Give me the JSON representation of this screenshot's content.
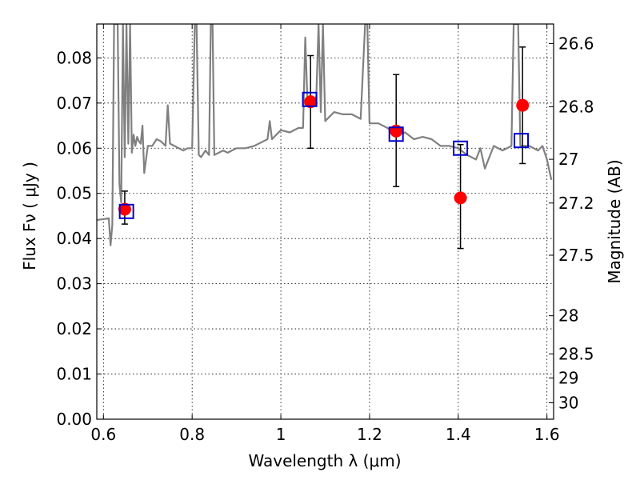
{
  "chart_data": {
    "type": "scatter",
    "xlabel": "Wavelength  λ (μm)",
    "ylabel": "Flux  Fν  ( μJy )",
    "y2label": "Magnitude (AB)",
    "xlim": [
      0.585,
      1.615
    ],
    "ylim": [
      0.0,
      0.0875
    ],
    "grid": true,
    "x_ticks": [
      0.6,
      0.8,
      1.0,
      1.2,
      1.4,
      1.6
    ],
    "x_tick_labels": [
      "0.6",
      "0.8",
      "1",
      "1.2",
      "1.4",
      "1.6"
    ],
    "y_ticks": [
      0.0,
      0.01,
      0.02,
      0.03,
      0.04,
      0.05,
      0.06,
      0.07,
      0.08
    ],
    "y_tick_labels": [
      "0.00",
      "0.01",
      "0.02",
      "0.03",
      "0.04",
      "0.05",
      "0.06",
      "0.07",
      "0.08"
    ],
    "mag_ticks": [
      26.6,
      26.8,
      27.0,
      27.2,
      27.5,
      28.0,
      28.5,
      29.0,
      30.0
    ],
    "mag_tick_labels": [
      "26.6",
      "26.8",
      "27",
      "27.2",
      "27.5",
      "28",
      "28.5",
      "29",
      "30"
    ],
    "model_spectrum": {
      "color": "#808080",
      "x": [
        0.585,
        0.6,
        0.612,
        0.616,
        0.62,
        0.624,
        0.628,
        0.632,
        0.636,
        0.64,
        0.644,
        0.648,
        0.652,
        0.656,
        0.66,
        0.664,
        0.668,
        0.672,
        0.676,
        0.68,
        0.684,
        0.688,
        0.692,
        0.7,
        0.71,
        0.72,
        0.73,
        0.74,
        0.745,
        0.75,
        0.76,
        0.77,
        0.78,
        0.79,
        0.8,
        0.806,
        0.81,
        0.815,
        0.82,
        0.83,
        0.838,
        0.842,
        0.846,
        0.85,
        0.86,
        0.87,
        0.88,
        0.9,
        0.92,
        0.94,
        0.96,
        0.97,
        0.975,
        0.98,
        0.985,
        0.99,
        1.0,
        1.02,
        1.04,
        1.05,
        1.055,
        1.06,
        1.075,
        1.08,
        1.085,
        1.09,
        1.095,
        1.1,
        1.11,
        1.12,
        1.14,
        1.16,
        1.18,
        1.19,
        1.195,
        1.2,
        1.22,
        1.24,
        1.26,
        1.28,
        1.3,
        1.32,
        1.34,
        1.36,
        1.38,
        1.4,
        1.42,
        1.44,
        1.45,
        1.46,
        1.48,
        1.5,
        1.52,
        1.525,
        1.53,
        1.535,
        1.54,
        1.56,
        1.58,
        1.59,
        1.6,
        1.61
      ],
      "y": [
        0.0441,
        0.0443,
        0.0445,
        0.0385,
        0.043,
        0.0875,
        0.0875,
        0.0875,
        0.052,
        0.048,
        0.0875,
        0.058,
        0.0875,
        0.061,
        0.0875,
        0.059,
        0.063,
        0.0605,
        0.0625,
        0.0615,
        0.061,
        0.065,
        0.0545,
        0.0605,
        0.0605,
        0.062,
        0.0615,
        0.0605,
        0.0695,
        0.061,
        0.0605,
        0.06,
        0.0595,
        0.06,
        0.06,
        0.0875,
        0.0875,
        0.0585,
        0.058,
        0.0595,
        0.0585,
        0.0875,
        0.0875,
        0.0585,
        0.059,
        0.0595,
        0.059,
        0.06,
        0.06,
        0.0605,
        0.0615,
        0.062,
        0.066,
        0.062,
        0.0625,
        0.063,
        0.064,
        0.0635,
        0.0645,
        0.0645,
        0.0845,
        0.0705,
        0.0705,
        0.0715,
        0.0875,
        0.068,
        0.0875,
        0.066,
        0.067,
        0.068,
        0.0675,
        0.0675,
        0.0665,
        0.0875,
        0.0875,
        0.0655,
        0.0655,
        0.0645,
        0.063,
        0.0635,
        0.062,
        0.0625,
        0.062,
        0.0605,
        0.0605,
        0.06,
        0.0585,
        0.0575,
        0.06,
        0.0555,
        0.0605,
        0.0595,
        0.0605,
        0.0875,
        0.0875,
        0.0875,
        0.0605,
        0.0605,
        0.0595,
        0.0605,
        0.0575,
        0.053
      ]
    },
    "series": [
      {
        "name": "",
        "marker": "circle",
        "color": "#ff0000",
        "x": [
          0.648,
          1.067,
          1.26,
          1.405,
          1.545
        ],
        "y": [
          0.0465,
          0.0703,
          0.0638,
          0.049,
          0.0695
        ],
        "yerr_low": [
          0.0033,
          0.0103,
          0.0123,
          0.0112,
          0.0129
        ],
        "yerr_high": [
          0.004,
          0.0102,
          0.0125,
          0.0118,
          0.0129
        ]
      },
      {
        "name": "",
        "marker": "open-square",
        "color": "#0000cc",
        "x": [
          0.652,
          1.065,
          1.26,
          1.405,
          1.542
        ],
        "y": [
          0.046,
          0.0708,
          0.0631,
          0.06,
          0.0617
        ]
      }
    ]
  }
}
